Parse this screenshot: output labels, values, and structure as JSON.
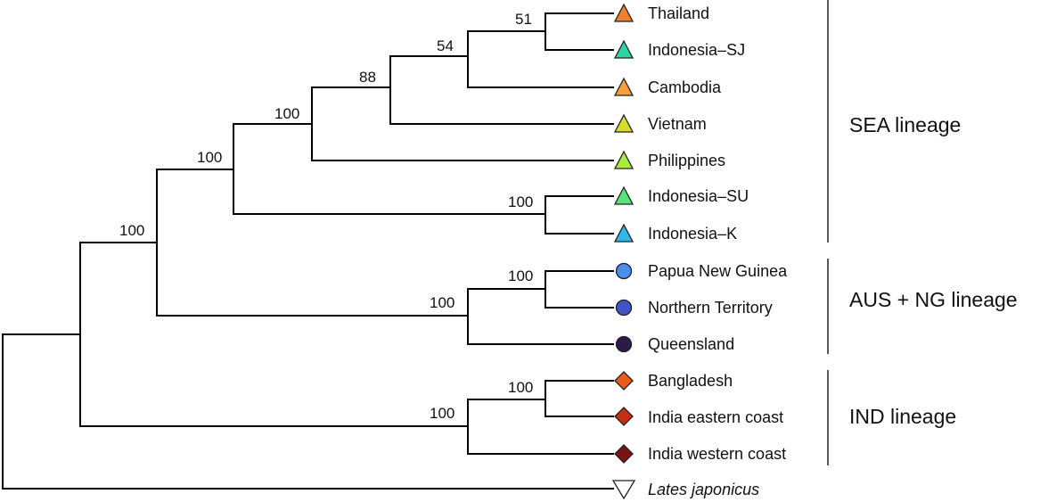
{
  "figure": {
    "tips": [
      {
        "label": "Thailand",
        "marker": "triangle-up",
        "color": "#F07F2E"
      },
      {
        "label": "Indonesia–SJ",
        "marker": "triangle-up",
        "color": "#2CD4A6"
      },
      {
        "label": "Cambodia",
        "marker": "triangle-up",
        "color": "#F5A03D"
      },
      {
        "label": "Vietnam",
        "marker": "triangle-up",
        "color": "#D6DD2E"
      },
      {
        "label": "Philippines",
        "marker": "triangle-up",
        "color": "#A9EC3C"
      },
      {
        "label": "Indonesia–SU",
        "marker": "triangle-up",
        "color": "#54E67C"
      },
      {
        "label": "Indonesia–K",
        "marker": "triangle-up",
        "color": "#30B8E8"
      },
      {
        "label": "Papua New Guinea",
        "marker": "circle",
        "color": "#4A8DEB"
      },
      {
        "label": "Northern Territory",
        "marker": "circle",
        "color": "#4353C4"
      },
      {
        "label": "Queensland",
        "marker": "circle",
        "color": "#2E1A47"
      },
      {
        "label": "Bangladesh",
        "marker": "diamond",
        "color": "#EC5A1C"
      },
      {
        "label": "India eastern coast",
        "marker": "diamond",
        "color": "#C42F12"
      },
      {
        "label": "India western coast",
        "marker": "diamond",
        "color": "#7A1410"
      },
      {
        "label": "Lates japonicus",
        "marker": "triangle-down",
        "color": "#FFFFFF"
      }
    ],
    "support_values": [
      "51",
      "54",
      "88",
      "100",
      "100",
      "100",
      "100",
      "100",
      "100",
      "100",
      "100"
    ],
    "lineages": [
      "SEA lineage",
      "AUS + NG lineage",
      "IND lineage"
    ]
  }
}
